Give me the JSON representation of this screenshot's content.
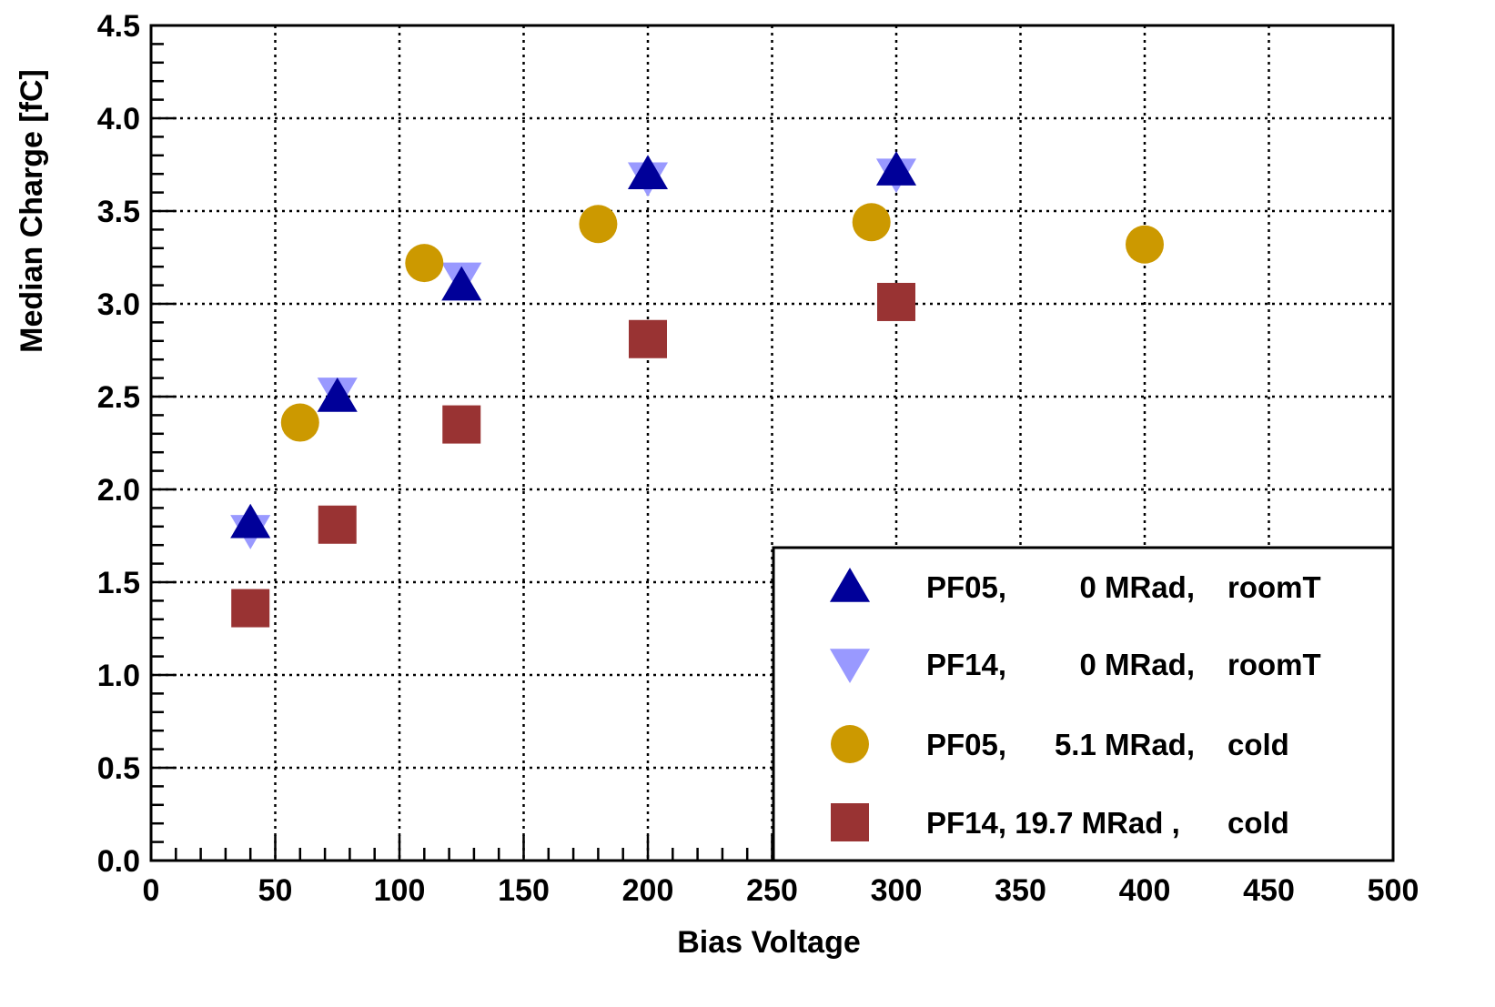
{
  "chart_data": {
    "type": "scatter",
    "title": "",
    "xlabel": "Bias Voltage",
    "ylabel": "Median Charge [fC]",
    "xlim": [
      0,
      500
    ],
    "ylim": [
      0,
      4.5
    ],
    "grid": true,
    "legend_position": "bottom-right",
    "x_ticks": [
      "0",
      "50",
      "100",
      "150",
      "200",
      "250",
      "300",
      "350",
      "400",
      "450",
      "500"
    ],
    "y_ticks": [
      "0.0",
      "0.5",
      "1.0",
      "1.5",
      "2.0",
      "2.5",
      "3.0",
      "3.5",
      "4.0",
      "4.5"
    ],
    "series": [
      {
        "label": [
          "PF05,",
          "0 MRad,",
          "roomT"
        ],
        "marker": "triangle-up",
        "color": "#000099",
        "points": [
          [
            40,
            1.82
          ],
          [
            75,
            2.5
          ],
          [
            125,
            3.1
          ],
          [
            200,
            3.7
          ],
          [
            300,
            3.72
          ]
        ]
      },
      {
        "label": [
          "PF14,",
          "0 MRad,",
          "roomT"
        ],
        "marker": "triangle-down",
        "color": "#9999ff",
        "points": [
          [
            40,
            1.78
          ],
          [
            75,
            2.52
          ],
          [
            125,
            3.14
          ],
          [
            200,
            3.68
          ],
          [
            300,
            3.7
          ]
        ]
      },
      {
        "label": [
          "PF05,",
          "5.1 MRad,",
          "cold"
        ],
        "marker": "circle",
        "color": "#cc9900",
        "points": [
          [
            60,
            2.36
          ],
          [
            110,
            3.22
          ],
          [
            180,
            3.43
          ],
          [
            290,
            3.44
          ],
          [
            400,
            3.32
          ]
        ]
      },
      {
        "label": [
          "PF14, 19.7 MRad ,",
          "",
          "cold"
        ],
        "marker": "square",
        "color": "#993333",
        "points": [
          [
            40,
            1.36
          ],
          [
            75,
            1.81
          ],
          [
            125,
            2.35
          ],
          [
            200,
            2.81
          ],
          [
            300,
            3.01
          ]
        ]
      }
    ]
  }
}
